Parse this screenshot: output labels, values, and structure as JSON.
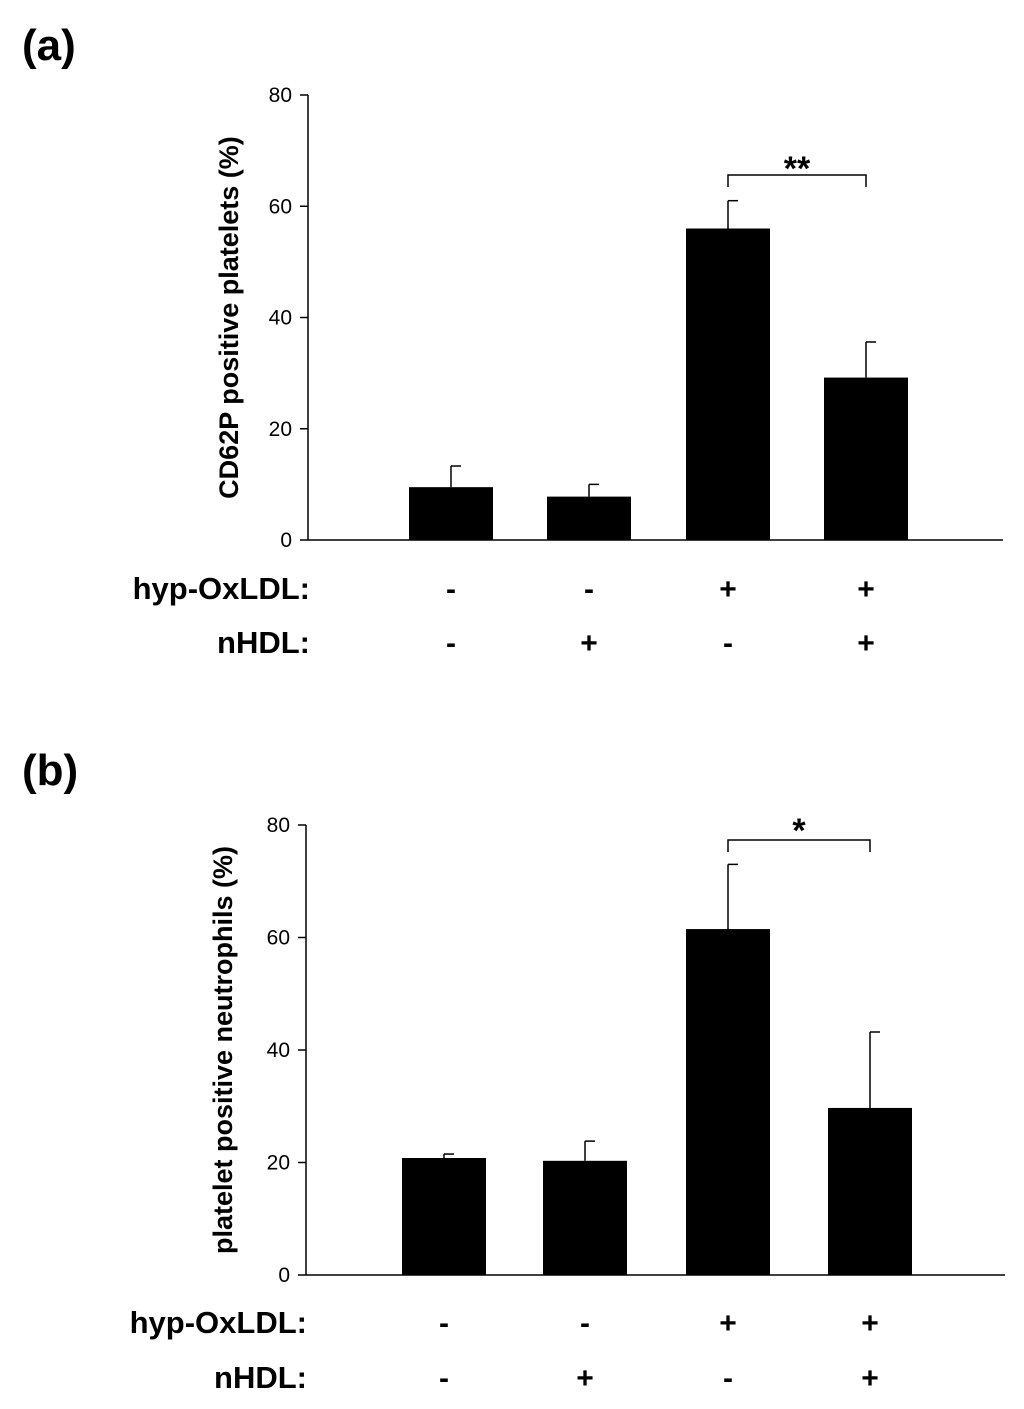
{
  "chart_data": [
    {
      "type": "bar",
      "panel_label": "(a)",
      "ylabel": "CD62P positive platelets (%)",
      "ylim": [
        0,
        80
      ],
      "yticks": [
        "0",
        "20",
        "40",
        "60",
        "80"
      ],
      "values": [
        9.5,
        7.8,
        56.0,
        29.2
      ],
      "errors": [
        3.8,
        2.2,
        5.0,
        6.4
      ],
      "conditions": [
        {
          "label": "hyp-OxLDL:",
          "signs": [
            "-",
            "-",
            "+",
            "+"
          ]
        },
        {
          "label": "nHDL:",
          "signs": [
            "-",
            "+",
            "-",
            "+"
          ]
        }
      ],
      "significance": {
        "bars": [
          2,
          3
        ],
        "label": "**"
      }
    },
    {
      "type": "bar",
      "panel_label": "(b)",
      "ylabel": "platelet positive neutrophils (%)",
      "ylim": [
        0,
        80
      ],
      "yticks": [
        "0",
        "20",
        "40",
        "60",
        "80"
      ],
      "values": [
        20.8,
        20.3,
        61.5,
        29.7
      ],
      "errors": [
        0.7,
        3.5,
        11.5,
        13.5
      ],
      "conditions": [
        {
          "label": "hyp-OxLDL:",
          "signs": [
            "-",
            "-",
            "+",
            "+"
          ]
        },
        {
          "label": "nHDL:",
          "signs": [
            "-",
            "+",
            "-",
            "+"
          ]
        }
      ],
      "significance": {
        "bars": [
          2,
          3
        ],
        "label": "*"
      }
    }
  ]
}
